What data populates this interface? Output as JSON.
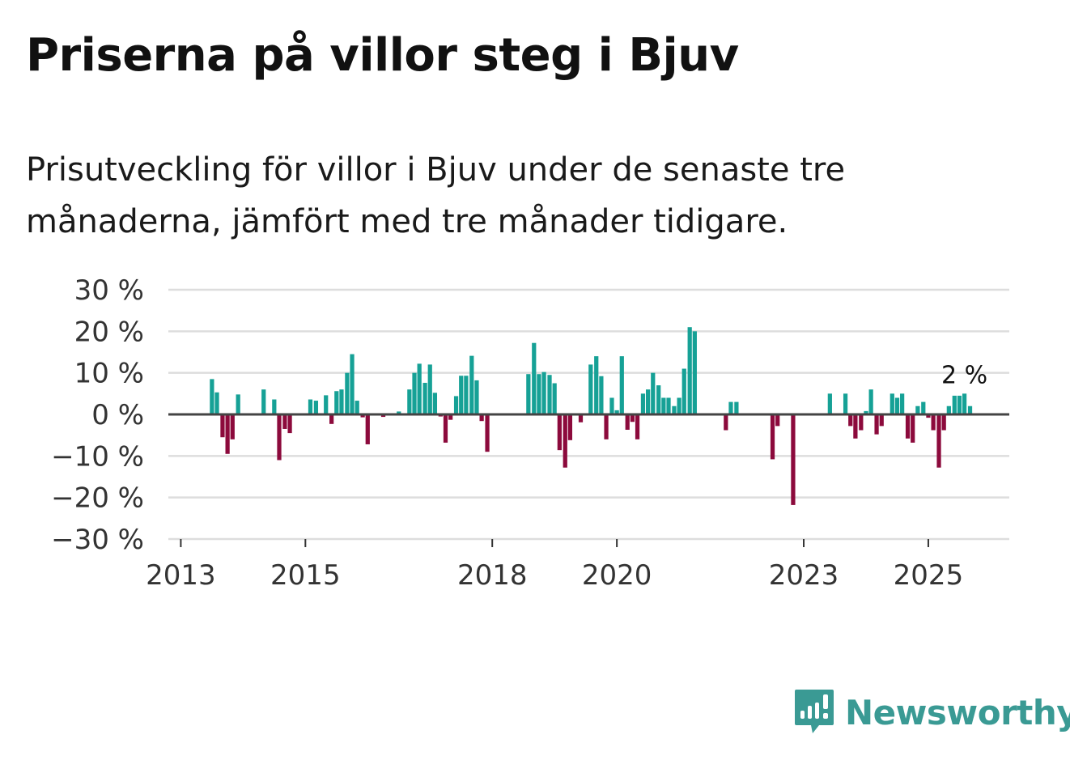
{
  "title": "Priserna på villor steg i Bjuv",
  "subtitle": "Prisutveckling för villor i Bjuv under de senaste tre månaderna, jämfört med tre månader tidigare.",
  "brand": {
    "name": "Newsworthy",
    "color": "#3a9a94"
  },
  "colors": {
    "positive": "#16a196",
    "negative": "#8c0a3c",
    "grid": "#dddddd",
    "zero": "#444444"
  },
  "chart_data": {
    "type": "bar",
    "title": "Priserna på villor steg i Bjuv",
    "xlabel": "",
    "ylabel": "",
    "ylim": [
      -30,
      30
    ],
    "yticks": [
      30,
      20,
      10,
      0,
      -10,
      -20,
      -30
    ],
    "ytick_labels": [
      "30 %",
      "20 %",
      "10 %",
      "0 %",
      "−10 %",
      "−20 %",
      "−30 %"
    ],
    "xlim": [
      2012.8,
      2026.3
    ],
    "xticks": [
      2013,
      2015,
      2018,
      2020,
      2023,
      2025
    ],
    "xtick_labels": [
      "2013",
      "2015",
      "2018",
      "2020",
      "2023",
      "2025"
    ],
    "bar_width_years": 0.068,
    "annotation": {
      "text": "2 %",
      "x": 2025.58,
      "y": 2
    },
    "series": [
      {
        "name": "Prisutveckling",
        "points": [
          {
            "x": 2013.5,
            "y": 8.5
          },
          {
            "x": 2013.58,
            "y": 5.3
          },
          {
            "x": 2013.67,
            "y": -5.5
          },
          {
            "x": 2013.75,
            "y": -9.5
          },
          {
            "x": 2013.83,
            "y": -6
          },
          {
            "x": 2013.92,
            "y": 4.8
          },
          {
            "x": 2014.33,
            "y": 6
          },
          {
            "x": 2014.5,
            "y": 3.6
          },
          {
            "x": 2014.58,
            "y": -11
          },
          {
            "x": 2014.67,
            "y": -3.5
          },
          {
            "x": 2014.75,
            "y": -4.5
          },
          {
            "x": 2015.08,
            "y": 3.6
          },
          {
            "x": 2015.17,
            "y": 3.3
          },
          {
            "x": 2015.33,
            "y": 4.6
          },
          {
            "x": 2015.42,
            "y": -2.3
          },
          {
            "x": 2015.5,
            "y": 5.6
          },
          {
            "x": 2015.58,
            "y": 6
          },
          {
            "x": 2015.67,
            "y": 10
          },
          {
            "x": 2015.75,
            "y": 14.5
          },
          {
            "x": 2015.83,
            "y": 3.3
          },
          {
            "x": 2015.92,
            "y": -0.7
          },
          {
            "x": 2016.0,
            "y": -7.2
          },
          {
            "x": 2016.25,
            "y": -0.6
          },
          {
            "x": 2016.5,
            "y": 0.7
          },
          {
            "x": 2016.67,
            "y": 6
          },
          {
            "x": 2016.75,
            "y": 10
          },
          {
            "x": 2016.83,
            "y": 12.2
          },
          {
            "x": 2016.92,
            "y": 7.6
          },
          {
            "x": 2017.0,
            "y": 12
          },
          {
            "x": 2017.08,
            "y": 5.2
          },
          {
            "x": 2017.17,
            "y": -0.5
          },
          {
            "x": 2017.25,
            "y": -6.8
          },
          {
            "x": 2017.33,
            "y": -1.3
          },
          {
            "x": 2017.42,
            "y": 4.4
          },
          {
            "x": 2017.5,
            "y": 9.3
          },
          {
            "x": 2017.58,
            "y": 9.3
          },
          {
            "x": 2017.67,
            "y": 14.1
          },
          {
            "x": 2017.75,
            "y": 8.2
          },
          {
            "x": 2017.83,
            "y": -1.6
          },
          {
            "x": 2017.92,
            "y": -9
          },
          {
            "x": 2018.58,
            "y": 9.7
          },
          {
            "x": 2018.67,
            "y": 17.2
          },
          {
            "x": 2018.75,
            "y": 9.7
          },
          {
            "x": 2018.83,
            "y": 10.2
          },
          {
            "x": 2018.92,
            "y": 9.5
          },
          {
            "x": 2019.0,
            "y": 7.5
          },
          {
            "x": 2019.08,
            "y": -8.6
          },
          {
            "x": 2019.17,
            "y": -12.8
          },
          {
            "x": 2019.25,
            "y": -6.2
          },
          {
            "x": 2019.42,
            "y": -1.9
          },
          {
            "x": 2019.58,
            "y": 12
          },
          {
            "x": 2019.67,
            "y": 14
          },
          {
            "x": 2019.75,
            "y": 9.2
          },
          {
            "x": 2019.83,
            "y": -6
          },
          {
            "x": 2019.92,
            "y": 4
          },
          {
            "x": 2020.0,
            "y": 1
          },
          {
            "x": 2020.08,
            "y": 14
          },
          {
            "x": 2020.17,
            "y": -3.7
          },
          {
            "x": 2020.25,
            "y": -1.8
          },
          {
            "x": 2020.33,
            "y": -6
          },
          {
            "x": 2020.42,
            "y": 5
          },
          {
            "x": 2020.5,
            "y": 6
          },
          {
            "x": 2020.58,
            "y": 10
          },
          {
            "x": 2020.67,
            "y": 7
          },
          {
            "x": 2020.75,
            "y": 4
          },
          {
            "x": 2020.83,
            "y": 4
          },
          {
            "x": 2020.92,
            "y": 2
          },
          {
            "x": 2021.0,
            "y": 4
          },
          {
            "x": 2021.08,
            "y": 11
          },
          {
            "x": 2021.17,
            "y": 21
          },
          {
            "x": 2021.25,
            "y": 20
          },
          {
            "x": 2021.75,
            "y": -3.8
          },
          {
            "x": 2021.83,
            "y": 3
          },
          {
            "x": 2021.92,
            "y": 3
          },
          {
            "x": 2022.5,
            "y": -10.8
          },
          {
            "x": 2022.58,
            "y": -2.8
          },
          {
            "x": 2022.83,
            "y": -21.8
          },
          {
            "x": 2023.42,
            "y": 5
          },
          {
            "x": 2023.67,
            "y": 5
          },
          {
            "x": 2023.75,
            "y": -2.8
          },
          {
            "x": 2023.83,
            "y": -5.8
          },
          {
            "x": 2023.92,
            "y": -3.8
          },
          {
            "x": 2024.0,
            "y": 0.8
          },
          {
            "x": 2024.08,
            "y": 6
          },
          {
            "x": 2024.17,
            "y": -4.8
          },
          {
            "x": 2024.25,
            "y": -2.8
          },
          {
            "x": 2024.42,
            "y": 5
          },
          {
            "x": 2024.5,
            "y": 4
          },
          {
            "x": 2024.58,
            "y": 5
          },
          {
            "x": 2024.67,
            "y": -5.8
          },
          {
            "x": 2024.75,
            "y": -6.8
          },
          {
            "x": 2024.83,
            "y": 2
          },
          {
            "x": 2024.92,
            "y": 3
          },
          {
            "x": 2025.0,
            "y": -0.8
          },
          {
            "x": 2025.08,
            "y": -3.8
          },
          {
            "x": 2025.17,
            "y": -12.8
          },
          {
            "x": 2025.25,
            "y": -3.8
          },
          {
            "x": 2025.33,
            "y": 2
          },
          {
            "x": 2025.42,
            "y": 4.5
          },
          {
            "x": 2025.5,
            "y": 4.5
          },
          {
            "x": 2025.58,
            "y": 5
          },
          {
            "x": 2025.67,
            "y": 2
          }
        ]
      }
    ]
  }
}
